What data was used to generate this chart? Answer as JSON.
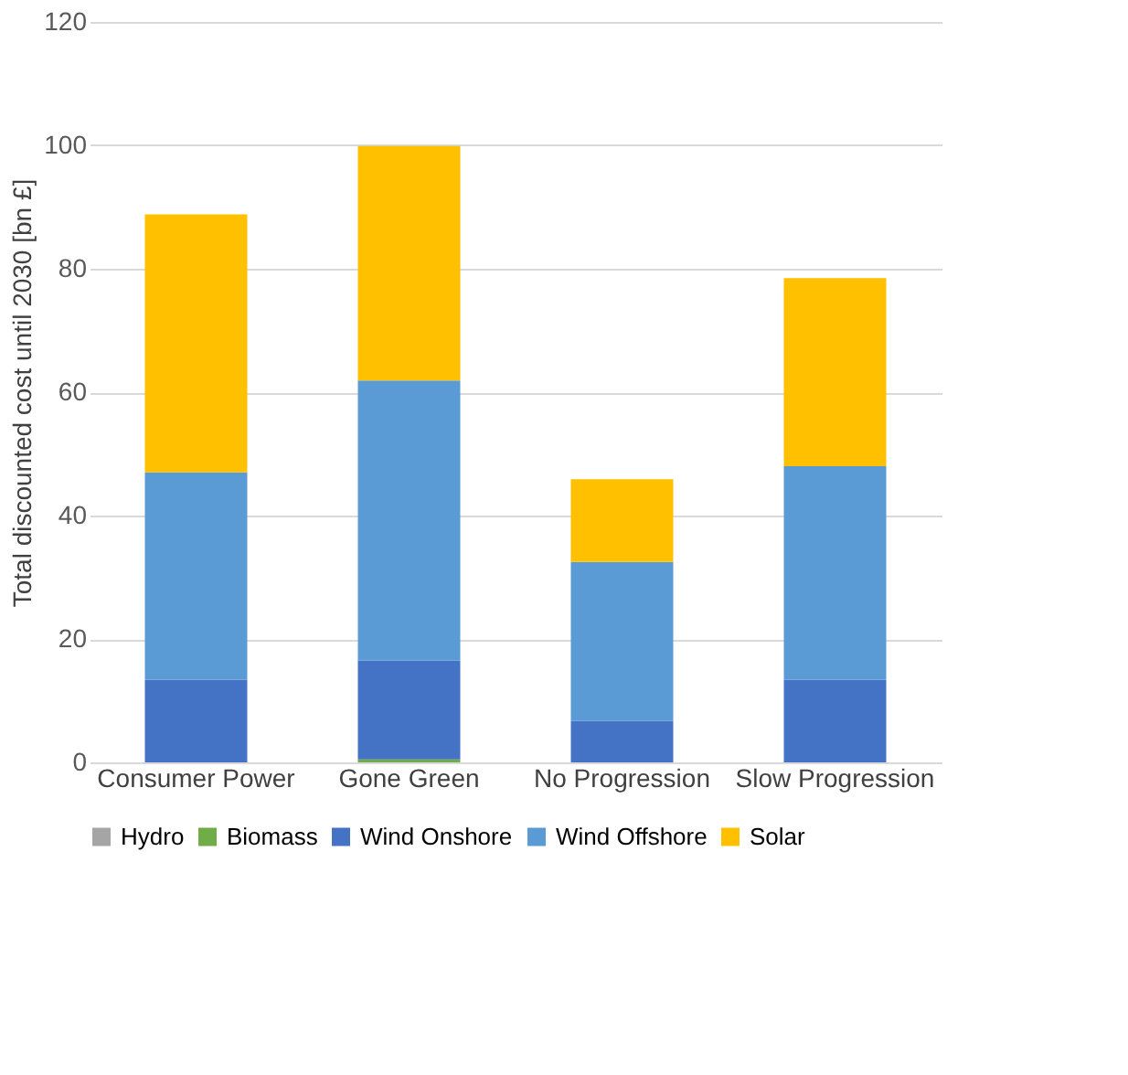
{
  "chart_data": {
    "type": "bar",
    "stacked": true,
    "ylabel": "Total discounted cost until 2030 [bn £]",
    "categories": [
      "Consumer Power",
      "Gone Green",
      "No Progression",
      "Slow Progression"
    ],
    "series": [
      {
        "name": "Hydro",
        "color": "#a5a5a5",
        "values": [
          0,
          0,
          0,
          0
        ]
      },
      {
        "name": "Biomass",
        "color": "#70ad47",
        "values": [
          0,
          0.5,
          0,
          0
        ]
      },
      {
        "name": "Wind Onshore",
        "color": "#4472c4",
        "values": [
          13.4,
          16,
          6.7,
          13.4
        ]
      },
      {
        "name": "Wind Offshore",
        "color": "#5b9bd5",
        "values": [
          33.6,
          45.4,
          25.8,
          34.6
        ]
      },
      {
        "name": "Solar",
        "color": "#ffc000",
        "values": [
          41.8,
          38,
          13.4,
          30.5
        ]
      }
    ],
    "ylim": [
      0,
      120
    ],
    "yticks": [
      0,
      20,
      40,
      60,
      80,
      100,
      120
    ],
    "grid": "y",
    "legend": "bottom"
  }
}
